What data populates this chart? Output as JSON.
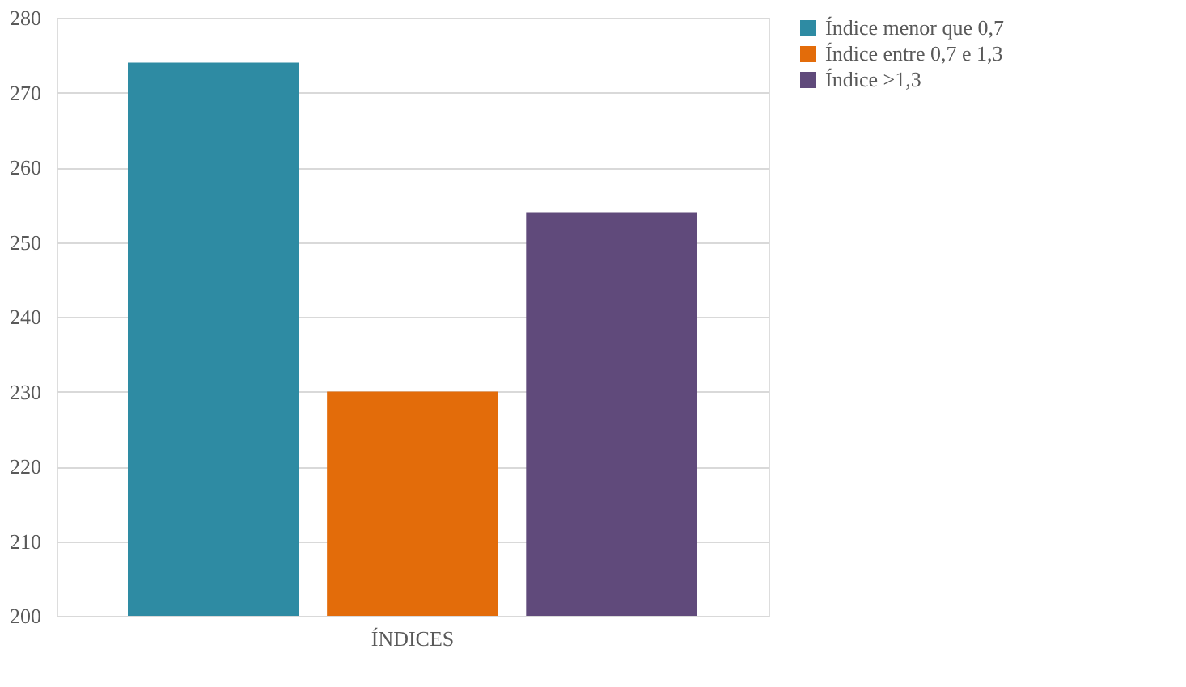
{
  "chart_data": {
    "type": "bar",
    "categories": [
      "ÍNDICES"
    ],
    "series": [
      {
        "name": "Índice menor que 0,7",
        "color": "#2e8ba3",
        "values": [
          274
        ]
      },
      {
        "name": "Índice entre 0,7 e 1,3",
        "color": "#e36c0a",
        "values": [
          230
        ]
      },
      {
        "name": "Índice >1,3",
        "color": "#604a7b",
        "values": [
          254
        ]
      }
    ],
    "ylim": [
      200,
      280
    ],
    "yticks": [
      200,
      210,
      220,
      230,
      240,
      250,
      260,
      270,
      280
    ],
    "grid": "y",
    "legend": "right"
  }
}
